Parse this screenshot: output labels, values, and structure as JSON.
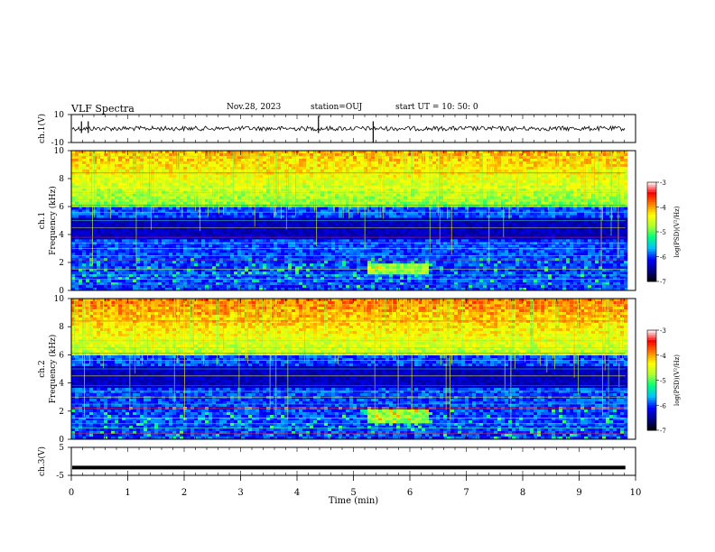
{
  "header": {
    "title": "VLF Spectra",
    "date": "Nov.28, 2023",
    "station": "station=OUJ",
    "start_ut": "start UT =   10: 50: 0"
  },
  "chart_data": [
    {
      "type": "line",
      "name": "ch1-waveform",
      "ylabel": "ch.1(V)",
      "ylim": [
        -10,
        10
      ],
      "y_ticks": [
        "10",
        "-10"
      ],
      "xlim": [
        0,
        10
      ],
      "baseline": 0,
      "spikes_min": [
        0.18,
        0.3,
        4.38,
        5.35
      ]
    },
    {
      "type": "heatmap",
      "name": "ch1-spectrogram",
      "channel": "ch.1",
      "ylabel": "Frequency (kHz)",
      "ylim": [
        0,
        10
      ],
      "y_ticks": [
        "0",
        "2",
        "4",
        "6",
        "8",
        "10"
      ],
      "xlim": [
        0,
        10
      ],
      "colorbar": {
        "label": "log(PSD)(V²/Hz)",
        "range": [
          -7,
          -3
        ],
        "ticks": [
          "-3",
          "-4",
          "-5",
          "-6",
          "-7"
        ]
      },
      "features": {
        "broadband_band_kHz": [
          6,
          10
        ],
        "emission_patch": {
          "x_min": [
            5.2,
            6.3
          ],
          "y_kHz": [
            1.2,
            2.0
          ]
        }
      }
    },
    {
      "type": "heatmap",
      "name": "ch2-spectrogram",
      "channel": "ch.2",
      "ylabel": "Frequency (kHz)",
      "ylim": [
        0,
        10
      ],
      "y_ticks": [
        "0",
        "2",
        "4",
        "6",
        "8",
        "10"
      ],
      "xlim": [
        0,
        10
      ],
      "colorbar": {
        "label": "log(PSD)(V²/Hz)",
        "range": [
          -7,
          -3
        ],
        "ticks": [
          "-3",
          "-4",
          "-5",
          "-6",
          "-7"
        ]
      },
      "features": {
        "broadband_band_kHz": [
          6,
          10
        ],
        "emission_patch": {
          "x_min": [
            5.2,
            6.3
          ],
          "y_kHz": [
            1.2,
            2.2
          ]
        }
      }
    },
    {
      "type": "line",
      "name": "ch3-waveform",
      "ylabel": "ch.3(V)",
      "ylim": [
        -5,
        5
      ],
      "y_ticks": [
        "5",
        "-5"
      ],
      "xlim": [
        0,
        10
      ],
      "baseline": -2.2
    }
  ],
  "x_axis": {
    "label": "Time (min)",
    "ticks": [
      "0",
      "1",
      "2",
      "3",
      "4",
      "5",
      "6",
      "7",
      "8",
      "9",
      "10"
    ]
  },
  "colors": {
    "background": "#ffffff",
    "axis": "#000000",
    "colormap": [
      "#000000",
      "#00008b",
      "#0000ff",
      "#00bfff",
      "#00ff7f",
      "#adff2f",
      "#ffff00",
      "#ff8000",
      "#ff0000",
      "#ffffff"
    ]
  }
}
